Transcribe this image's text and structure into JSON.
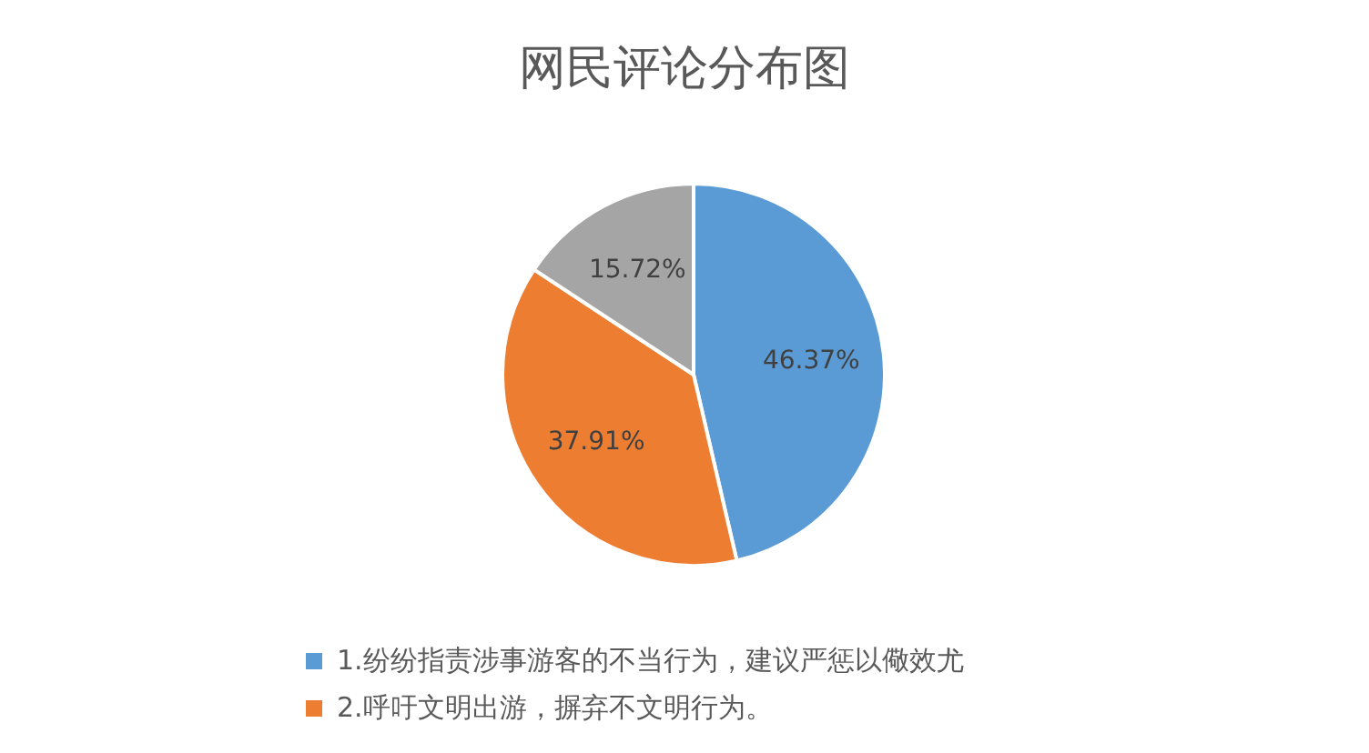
{
  "chart_data": {
    "type": "pie",
    "title": "网民评论分布图",
    "categories": [
      "1.纷纷指责涉事游客的不当行为，建议严惩以儆效尤",
      "2.呼吁文明出游，摒弃不文明行为。",
      null
    ],
    "values": [
      46.37,
      37.91,
      15.72
    ],
    "colors": [
      "#5b9bd5",
      "#ed7d31",
      "#a5a5a5"
    ],
    "value_labels": [
      "46.37%",
      "37.91%",
      "15.72%"
    ],
    "legend": "bottom"
  }
}
